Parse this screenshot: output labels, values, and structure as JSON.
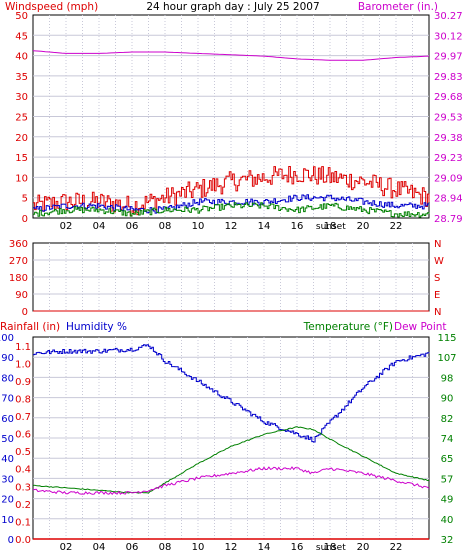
{
  "header": {
    "left_label": "Windspeed (mph)",
    "title": "24 hour graph day : July 25 2007",
    "right_label": "Barometer (in.)"
  },
  "colors": {
    "red": "#dd0000",
    "magenta": "#cc00cc",
    "blue": "#0000cc",
    "green": "#008000",
    "grid": "#c8c8d8",
    "gray_axis": "#808080"
  },
  "x_axis": {
    "tick_labels": [
      "02",
      "04",
      "06",
      "08",
      "10",
      "12",
      "14",
      "16",
      "18",
      "20",
      "22"
    ],
    "marker_label": "sunset"
  },
  "chart_data": [
    {
      "type": "line",
      "panel": "wind-barometer",
      "xlabel": "",
      "ylabel": "Windspeed (mph)",
      "y2label": "Barometer (in.)",
      "ylim": [
        0,
        50
      ],
      "y2lim": [
        28.79,
        30.27
      ],
      "y_ticks": [
        "0",
        "5",
        "10",
        "15",
        "20",
        "25",
        "30",
        "35",
        "40",
        "45",
        "50"
      ],
      "y2_ticks": [
        "28.79",
        "28.94",
        "29.09",
        "29.23",
        "29.38",
        "29.53",
        "29.68",
        "29.83",
        "29.97",
        "30.12",
        "30.27"
      ],
      "x_hours": [
        0,
        2,
        4,
        6,
        8,
        10,
        12,
        14,
        16,
        18,
        20,
        22,
        24
      ],
      "series": [
        {
          "name": "Barometer (in.)",
          "color": "magenta",
          "axis": "right",
          "values": [
            30.01,
            29.99,
            29.99,
            30.0,
            30.0,
            29.99,
            29.98,
            29.97,
            29.95,
            29.94,
            29.94,
            29.96,
            29.97
          ]
        },
        {
          "name": "Windspeed (mph)",
          "color": "red",
          "axis": "left",
          "values": [
            3,
            4,
            4,
            3,
            5,
            7,
            9,
            10,
            11,
            10,
            9,
            7,
            5
          ]
        },
        {
          "name": "",
          "color": "blue",
          "axis": "left",
          "values": [
            2,
            3,
            3,
            2,
            2,
            4,
            4,
            4,
            5,
            5,
            4,
            3,
            3
          ]
        },
        {
          "name": "",
          "color": "green",
          "axis": "left",
          "values": [
            1,
            2,
            2,
            1,
            2,
            2,
            3,
            3,
            2,
            3,
            2,
            1,
            1
          ]
        }
      ]
    },
    {
      "type": "scatter",
      "panel": "wind-direction",
      "xlabel": "",
      "ylabel": "",
      "ylim": [
        0,
        360
      ],
      "y_ticks": [
        "0",
        "90",
        "180",
        "270",
        "360"
      ],
      "y2_ticks": [
        "N",
        "E",
        "S",
        "W",
        "N"
      ],
      "x_hours": [],
      "values": []
    },
    {
      "type": "line",
      "panel": "rain-humidity-temperature",
      "xlabel": "",
      "ylabel_rain": "Rainfall (in)",
      "ylabel_humidity": "Humidity %",
      "y2label_temperature": "Temperature (°F)",
      "y2label_dewpoint": "Dew Point",
      "humidity_ticks": [
        "0",
        "10",
        "20",
        "30",
        "40",
        "50",
        "60",
        "70",
        "80",
        "90",
        "100"
      ],
      "rain_ticks": [
        "0.0",
        "0.1",
        "0.2",
        "0.3",
        "0.4",
        "0.5",
        "0.6",
        "0.7",
        "0.8",
        "0.9",
        "1.0",
        "1.1"
      ],
      "temperature_ticks": [
        "32",
        "40",
        "49",
        "57",
        "65",
        "74",
        "82",
        "90",
        "98",
        "107",
        "115"
      ],
      "x_hours": [
        0,
        2,
        4,
        6,
        7,
        8,
        10,
        12,
        14,
        16,
        17,
        18,
        20,
        22,
        24
      ],
      "series": [
        {
          "name": "Humidity %",
          "color": "blue",
          "axis": "humidity",
          "ylim": [
            0,
            100
          ],
          "values": [
            92,
            93,
            93,
            94,
            96,
            88,
            78,
            68,
            58,
            52,
            49,
            58,
            75,
            88,
            92
          ]
        },
        {
          "name": "Temperature (°F)",
          "color": "green",
          "axis": "temperature",
          "ylim": [
            32,
            115
          ],
          "values": [
            54,
            53,
            52,
            51,
            51,
            55,
            63,
            70,
            75,
            78,
            77,
            73,
            66,
            59,
            56
          ]
        },
        {
          "name": "Dew Point",
          "color": "magenta",
          "axis": "temperature",
          "ylim": [
            32,
            115
          ],
          "values": [
            52,
            51,
            51,
            51,
            52,
            54,
            57,
            59,
            61,
            61,
            59,
            61,
            59,
            56,
            53
          ]
        },
        {
          "name": "Rainfall (in)",
          "color": "red",
          "axis": "rain",
          "ylim": [
            0,
            1.15
          ],
          "values": [
            0,
            0,
            0,
            0,
            0,
            0,
            0,
            0,
            0,
            0,
            0,
            0,
            0,
            0,
            0
          ]
        }
      ]
    }
  ]
}
